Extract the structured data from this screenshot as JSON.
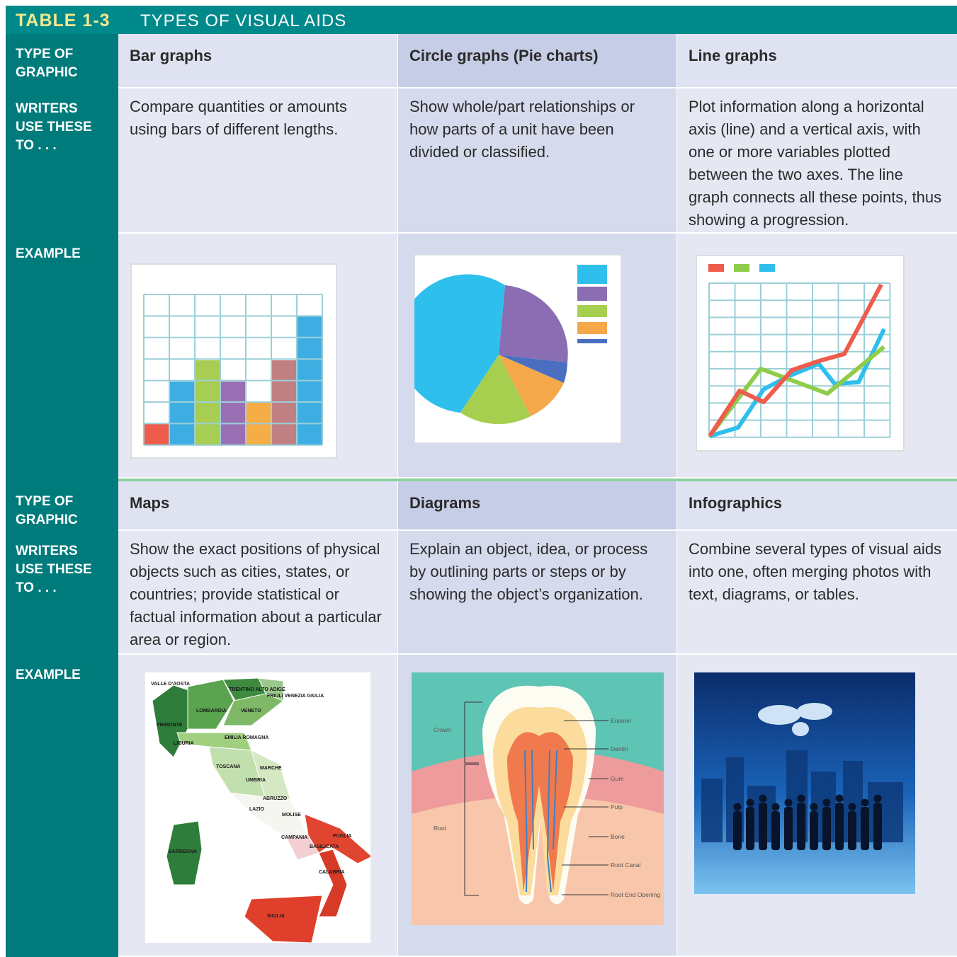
{
  "header": {
    "table_number": "TABLE 1-3",
    "title": "TYPES OF VISUAL AIDS"
  },
  "sections": [
    {
      "row_labels": {
        "type": "TYPE OF GRAPHIC",
        "use": "WRITERS USE THESE TO . . .",
        "example": "EXAMPLE"
      },
      "columns": [
        {
          "type": "Bar graphs",
          "use": "Compare quantities or amounts using bars of different lengths."
        },
        {
          "type": "Circle graphs (Pie charts)",
          "use": "Show whole/part relationships or how parts of a unit have been divided or classified."
        },
        {
          "type": "Line graphs",
          "use": "Plot information along a horizontal axis (line) and a vertical axis, with one or more variables plotted between the two axes. The line graph connects all these points, thus showing a progression."
        }
      ]
    },
    {
      "row_labels": {
        "type": "TYPE OF GRAPHIC",
        "use": "WRITERS USE THESE TO . . .",
        "example": "EXAMPLE"
      },
      "columns": [
        {
          "type": "Maps",
          "use": "Show the exact positions of physical objects such as cities, states, or countries; provide statistical or factual information about a particular area or region."
        },
        {
          "type": "Diagrams",
          "use": "Explain an object, idea, or process by outlining parts or steps or by showing the object’s organization."
        },
        {
          "type": "Infographics",
          "use": "Combine several types of visual aids into one, often merging photos with text, diagrams, or tables."
        }
      ]
    }
  ],
  "map_labels": [
    "VALLE D'AOSTA",
    "TRENTINO ALTO ADIGE",
    "FRIULI VENEZIA GIULIA",
    "LOMBARDIA",
    "VENETO",
    "PIEMONTE",
    "EMILIA ROMAGNA",
    "LIGURIA",
    "TOSCANA",
    "MARCHE",
    "UMBRIA",
    "ABRUZZO",
    "LAZIO",
    "MOLISE",
    "CAMPANIA",
    "PUGLIA",
    "BASILICATA",
    "SARDEGNA",
    "CALABRIA",
    "SICILIA"
  ],
  "diagram_labels": [
    "Crown",
    "Root",
    "Enamel",
    "Dentin",
    "Gum",
    "Pulp",
    "Bone",
    "Root Canal",
    "Root End Opening"
  ]
}
